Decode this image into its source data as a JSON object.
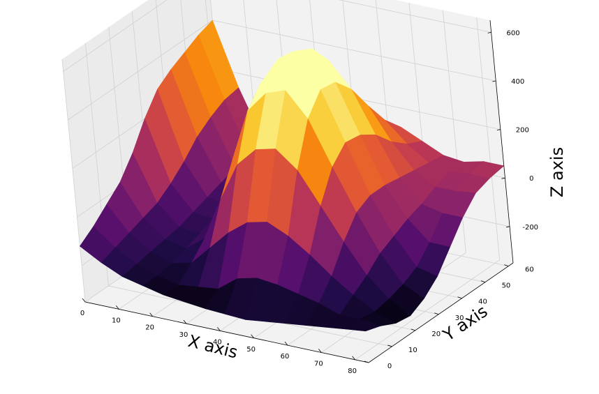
{
  "chart_data": {
    "type": "surface3d",
    "title": "",
    "colormap": "inferno",
    "xlabel": "X axis",
    "ylabel": "Y axis",
    "zlabel": "Z axis",
    "x_ticks": [
      "0",
      "10",
      "20",
      "30",
      "40",
      "50",
      "60",
      "70",
      "80"
    ],
    "y_ticks": [
      "0",
      "10",
      "20",
      "30",
      "40",
      "50",
      "60"
    ],
    "z_ticks": [
      "-200",
      "0",
      "200",
      "400",
      "600"
    ],
    "xlim": [
      0,
      84
    ],
    "ylim": [
      0,
      62
    ],
    "zlim": [
      -350,
      650
    ],
    "grid": true,
    "x_grid": [
      0,
      6,
      12,
      18,
      24,
      30,
      36,
      42,
      48,
      54,
      60,
      66,
      72,
      78,
      84
    ],
    "y_grid": [
      0,
      6.2,
      12.4,
      18.6,
      24.8,
      31,
      37.2,
      43.4,
      49.6,
      55.8,
      62
    ],
    "z": [
      [
        -120,
        -170,
        -210,
        -230,
        -250,
        -260,
        -270,
        -275,
        -280,
        -270,
        -260,
        -250,
        -240,
        -230,
        -220
      ],
      [
        -80,
        -150,
        -200,
        -230,
        -250,
        -240,
        -230,
        -170,
        -150,
        -160,
        -180,
        -200,
        -230,
        -230,
        -240
      ],
      [
        -30,
        -130,
        -190,
        -220,
        -200,
        -120,
        -40,
        20,
        40,
        0,
        -60,
        -130,
        -190,
        -240,
        -270
      ],
      [
        20,
        -110,
        -180,
        -200,
        -140,
        40,
        200,
        280,
        300,
        230,
        100,
        -30,
        -150,
        -230,
        -280
      ],
      [
        100,
        -90,
        -170,
        -180,
        -80,
        160,
        380,
        470,
        500,
        400,
        220,
        50,
        -100,
        -210,
        -250
      ],
      [
        200,
        -50,
        -150,
        -160,
        -40,
        220,
        450,
        570,
        600,
        480,
        280,
        80,
        -70,
        -180,
        -200
      ],
      [
        280,
        0,
        -130,
        -150,
        -30,
        200,
        440,
        560,
        590,
        470,
        270,
        80,
        -40,
        -120,
        -120
      ],
      [
        320,
        60,
        -110,
        -140,
        -50,
        140,
        350,
        470,
        500,
        400,
        230,
        70,
        -20,
        -40,
        -40
      ],
      [
        350,
        100,
        -90,
        -130,
        -80,
        60,
        220,
        320,
        350,
        290,
        160,
        60,
        10,
        10,
        20
      ],
      [
        380,
        130,
        -70,
        -120,
        -100,
        0,
        120,
        200,
        220,
        190,
        110,
        50,
        30,
        40,
        40
      ],
      [
        400,
        140,
        -60,
        -110,
        -110,
        -40,
        60,
        120,
        140,
        120,
        80,
        40,
        30,
        50,
        50
      ]
    ]
  }
}
